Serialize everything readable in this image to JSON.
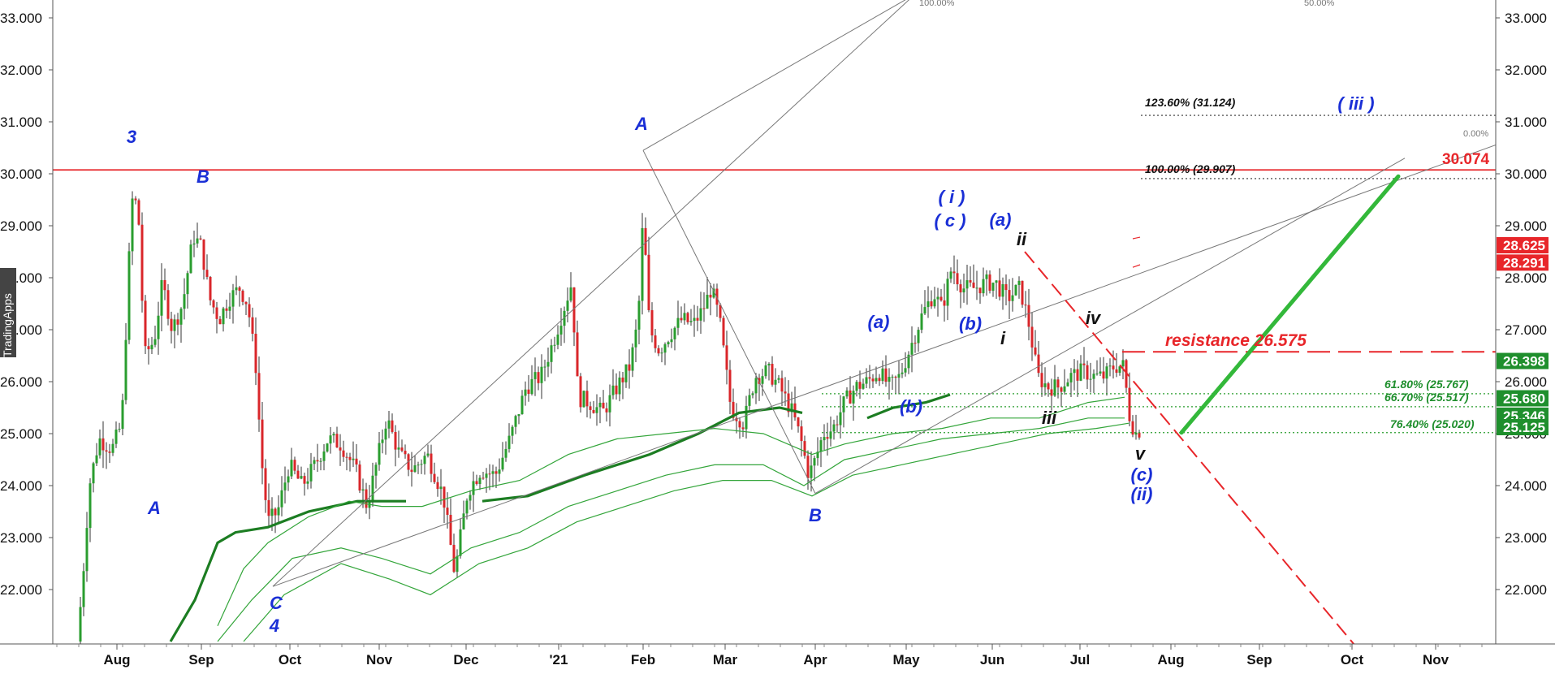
{
  "chart_data": {
    "type": "candlestick",
    "y_axis": {
      "range": [
        21.0,
        33.3
      ],
      "ticks": [
        "33.000",
        "32.000",
        "31.000",
        "30.000",
        "29.000",
        "28.000",
        "27.000",
        "26.000",
        "25.000",
        "24.000",
        "23.000",
        "22.000"
      ]
    },
    "x_axis": {
      "ticks": [
        "Aug",
        "Sep",
        "Oct",
        "Nov",
        "Dec",
        "'21",
        "Feb",
        "Mar",
        "Apr",
        "May",
        "Jun",
        "Jul",
        "Aug",
        "Sep",
        "Oct",
        "Nov"
      ]
    },
    "watermark": "TradingApps",
    "price_labels": [
      {
        "text": "28.625",
        "value": 28.625,
        "color": "#e8262a"
      },
      {
        "text": "28.291",
        "value": 28.291,
        "color": "#e8262a"
      },
      {
        "text": "26.398",
        "value": 26.398,
        "color": "#1f8f2d"
      },
      {
        "text": "25.680",
        "value": 25.68,
        "color": "#1f8f2d"
      },
      {
        "text": "25.346",
        "value": 25.346,
        "color": "#1f8f2d"
      },
      {
        "text": "25.125",
        "value": 25.125,
        "color": "#1f8f2d"
      }
    ],
    "resistance_label": "resistance 26.575",
    "horizontal_level": {
      "text": "30.074",
      "value": 30.074
    },
    "fib_levels": [
      {
        "text": "123.60% (31.124)",
        "value": 31.124,
        "color": "#111111"
      },
      {
        "text": "100.00% (29.907)",
        "value": 29.907,
        "color": "#111111"
      },
      {
        "text": "61.80% (25.767)",
        "value": 25.767,
        "color": "#1f8f2d"
      },
      {
        "text": "66.70% (25.517)",
        "value": 25.517,
        "color": "#1f8f2d"
      },
      {
        "text": "76.40% (25.020)",
        "value": 25.02,
        "color": "#1f8f2d"
      }
    ],
    "channel_labels": [
      "100.00%",
      "50.00%",
      "0.00%"
    ],
    "wave_labels": [
      {
        "text": "3",
        "color": "#1a2fd6"
      },
      {
        "text": "B",
        "color": "#1a2fd6"
      },
      {
        "text": "A",
        "color": "#1a2fd6"
      },
      {
        "text": "C",
        "color": "#1a2fd6"
      },
      {
        "text": "4",
        "color": "#1a2fd6"
      },
      {
        "text": "A",
        "color": "#1a2fd6"
      },
      {
        "text": "B",
        "color": "#1a2fd6"
      },
      {
        "text": "(a)",
        "color": "#1a2fd6"
      },
      {
        "text": "(b)",
        "color": "#1a2fd6"
      },
      {
        "text": "( i )",
        "color": "#1a2fd6"
      },
      {
        "text": "( c )",
        "color": "#1a2fd6"
      },
      {
        "text": "(a)",
        "color": "#1a2fd6"
      },
      {
        "text": "(b)",
        "color": "#1a2fd6"
      },
      {
        "text": "ii",
        "color": "#111111"
      },
      {
        "text": "i",
        "color": "#111111"
      },
      {
        "text": "iv",
        "color": "#111111"
      },
      {
        "text": "iii",
        "color": "#111111"
      },
      {
        "text": "v",
        "color": "#111111"
      },
      {
        "text": "(c)",
        "color": "#1a2fd6"
      },
      {
        "text": "(ii)",
        "color": "#1a2fd6"
      },
      {
        "text": "( iii )",
        "color": "#1a2fd6"
      }
    ]
  }
}
